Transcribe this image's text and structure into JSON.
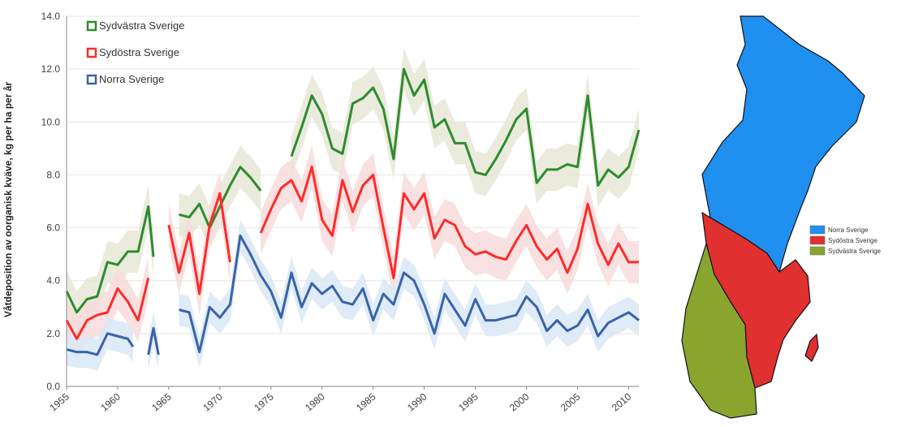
{
  "chart_data": {
    "type": "line",
    "ylabel": "Våtdeposition av oorganisk kväve, kg per ha per år",
    "xlabel": "",
    "xlim": [
      1955,
      2011
    ],
    "ylim": [
      0,
      14
    ],
    "y_ticks": [
      "0.0",
      "2.0",
      "4.0",
      "6.0",
      "8.0",
      "10.0",
      "12.0",
      "14.0"
    ],
    "x_ticks": [
      "1955",
      "1960",
      "1965",
      "1970",
      "1975",
      "1980",
      "1985",
      "1990",
      "1995",
      "2000",
      "2005",
      "2010"
    ],
    "legend_position": "top-left",
    "series": [
      {
        "name": "Sydvästra Sverige",
        "color": "#2e8b2e",
        "band_color": "#e6e8d6",
        "segments": [
          [
            [
              1955,
              3.6
            ],
            [
              1956,
              2.8
            ],
            [
              1957,
              3.3
            ],
            [
              1958,
              3.4
            ],
            [
              1959,
              4.7
            ],
            [
              1960,
              4.6
            ],
            [
              1961,
              5.1
            ],
            [
              1962,
              5.1
            ],
            [
              1963,
              6.8
            ],
            [
              1963.5,
              4.9
            ]
          ],
          [
            [
              1966,
              6.5
            ],
            [
              1967,
              6.4
            ],
            [
              1968,
              6.9
            ],
            [
              1969,
              6.0
            ],
            [
              1970,
              6.8
            ],
            [
              1971,
              7.6
            ],
            [
              1972,
              8.3
            ],
            [
              1973,
              7.9
            ],
            [
              1974,
              7.4
            ]
          ],
          [
            [
              1977,
              8.7
            ],
            [
              1978,
              9.8
            ],
            [
              1979,
              11.0
            ],
            [
              1980,
              10.3
            ],
            [
              1981,
              9.0
            ],
            [
              1982,
              8.8
            ],
            [
              1983,
              10.7
            ],
            [
              1984,
              10.9
            ],
            [
              1985,
              11.3
            ],
            [
              1986,
              10.5
            ],
            [
              1987,
              8.6
            ],
            [
              1988,
              12.0
            ],
            [
              1989,
              11.0
            ],
            [
              1990,
              11.6
            ],
            [
              1991,
              9.8
            ],
            [
              1992,
              10.1
            ],
            [
              1993,
              9.2
            ],
            [
              1994,
              9.2
            ],
            [
              1995,
              8.1
            ],
            [
              1996,
              8.0
            ],
            [
              1997,
              8.6
            ],
            [
              1998,
              9.3
            ],
            [
              1999,
              10.1
            ],
            [
              2000,
              10.5
            ],
            [
              2001,
              7.7
            ],
            [
              2002,
              8.2
            ],
            [
              2003,
              8.2
            ],
            [
              2004,
              8.4
            ],
            [
              2005,
              8.3
            ],
            [
              2006,
              11.0
            ],
            [
              2007,
              7.6
            ],
            [
              2008,
              8.2
            ],
            [
              2009,
              7.9
            ],
            [
              2010,
              8.3
            ],
            [
              2011,
              9.7
            ]
          ]
        ]
      },
      {
        "name": "Sydöstra Sverige",
        "color": "#ff2a2a",
        "band_color": "#f8dcdc",
        "segments": [
          [
            [
              1955,
              2.5
            ],
            [
              1956,
              1.8
            ],
            [
              1957,
              2.5
            ],
            [
              1958,
              2.7
            ],
            [
              1959,
              2.8
            ],
            [
              1960,
              3.7
            ],
            [
              1961,
              3.2
            ],
            [
              1962,
              2.5
            ],
            [
              1963,
              4.1
            ]
          ],
          [
            [
              1965,
              6.1
            ],
            [
              1966,
              4.3
            ],
            [
              1967,
              5.8
            ],
            [
              1968,
              3.5
            ],
            [
              1969,
              6.1
            ],
            [
              1970,
              7.3
            ],
            [
              1971,
              4.7
            ]
          ],
          [
            [
              1974,
              5.8
            ],
            [
              1975,
              6.7
            ],
            [
              1976,
              7.5
            ],
            [
              1977,
              7.8
            ],
            [
              1978,
              7.0
            ],
            [
              1979,
              8.3
            ],
            [
              1980,
              6.3
            ],
            [
              1981,
              5.7
            ],
            [
              1982,
              7.8
            ],
            [
              1983,
              6.6
            ],
            [
              1984,
              7.6
            ],
            [
              1985,
              8.0
            ],
            [
              1986,
              6.0
            ],
            [
              1987,
              4.1
            ],
            [
              1988,
              7.3
            ],
            [
              1989,
              6.7
            ],
            [
              1990,
              7.3
            ],
            [
              1991,
              5.6
            ],
            [
              1992,
              6.3
            ],
            [
              1993,
              6.1
            ],
            [
              1994,
              5.3
            ],
            [
              1995,
              5.0
            ],
            [
              1996,
              5.1
            ],
            [
              1997,
              4.9
            ],
            [
              1998,
              4.8
            ],
            [
              1999,
              5.5
            ],
            [
              2000,
              6.1
            ],
            [
              2001,
              5.3
            ],
            [
              2002,
              4.8
            ],
            [
              2003,
              5.2
            ],
            [
              2004,
              4.3
            ],
            [
              2005,
              5.2
            ],
            [
              2006,
              6.9
            ],
            [
              2007,
              5.4
            ],
            [
              2008,
              4.6
            ],
            [
              2009,
              5.4
            ],
            [
              2010,
              4.7
            ],
            [
              2011,
              4.7
            ]
          ]
        ]
      },
      {
        "name": "Norra Sverige",
        "color": "#3a63a8",
        "band_color": "#d9e8f4",
        "segments": [
          [
            [
              1955,
              1.4
            ],
            [
              1956,
              1.3
            ],
            [
              1957,
              1.3
            ],
            [
              1958,
              1.2
            ],
            [
              1959,
              2.0
            ],
            [
              1960,
              1.9
            ],
            [
              1961,
              1.8
            ],
            [
              1961.5,
              1.5
            ]
          ],
          [
            [
              1963,
              1.2
            ],
            [
              1963.5,
              2.2
            ],
            [
              1964,
              1.2
            ]
          ],
          [
            [
              1966,
              2.9
            ],
            [
              1967,
              2.8
            ],
            [
              1968,
              1.3
            ],
            [
              1969,
              3.0
            ],
            [
              1970,
              2.6
            ],
            [
              1971,
              3.1
            ],
            [
              1972,
              5.7
            ],
            [
              1973,
              5.0
            ],
            [
              1974,
              4.2
            ],
            [
              1975,
              3.6
            ],
            [
              1976,
              2.6
            ],
            [
              1977,
              4.3
            ],
            [
              1978,
              3.0
            ],
            [
              1979,
              3.9
            ],
            [
              1980,
              3.5
            ],
            [
              1981,
              3.8
            ],
            [
              1982,
              3.2
            ],
            [
              1983,
              3.1
            ],
            [
              1984,
              3.7
            ],
            [
              1985,
              2.5
            ],
            [
              1986,
              3.5
            ],
            [
              1987,
              3.1
            ],
            [
              1988,
              4.3
            ],
            [
              1989,
              4.0
            ],
            [
              1990,
              3.1
            ],
            [
              1991,
              2.0
            ],
            [
              1992,
              3.5
            ],
            [
              1993,
              2.9
            ],
            [
              1994,
              2.3
            ],
            [
              1995,
              3.3
            ],
            [
              1996,
              2.5
            ],
            [
              1997,
              2.5
            ],
            [
              1998,
              2.6
            ],
            [
              1999,
              2.7
            ],
            [
              2000,
              3.4
            ],
            [
              2001,
              3.0
            ],
            [
              2002,
              2.1
            ],
            [
              2003,
              2.5
            ],
            [
              2004,
              2.1
            ],
            [
              2005,
              2.3
            ],
            [
              2006,
              2.9
            ],
            [
              2007,
              1.9
            ],
            [
              2008,
              2.4
            ],
            [
              2009,
              2.6
            ],
            [
              2010,
              2.8
            ],
            [
              2011,
              2.5
            ]
          ]
        ]
      }
    ]
  },
  "map": {
    "legend": [
      {
        "label": "Norra Sverige",
        "color": "#1f8ff0"
      },
      {
        "label": "Sydöstra Sverige",
        "color": "#e03030"
      },
      {
        "label": "Sydvästra Sverige",
        "color": "#8aa52e"
      }
    ]
  }
}
